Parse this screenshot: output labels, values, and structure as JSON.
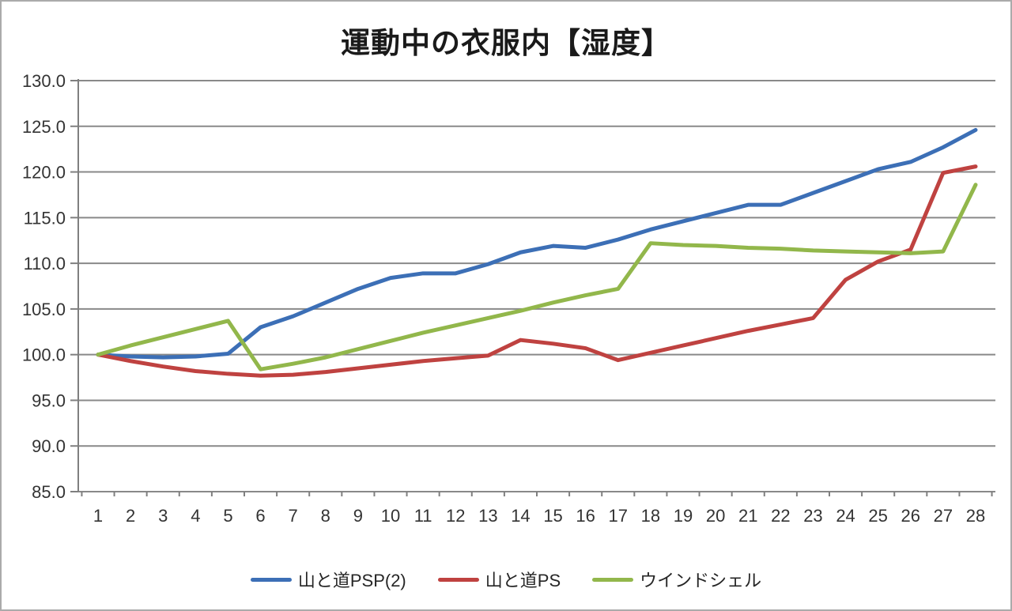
{
  "title": "運動中の衣服内【湿度】",
  "chart_data": {
    "type": "line",
    "x": [
      1,
      2,
      3,
      4,
      5,
      6,
      7,
      8,
      9,
      10,
      11,
      12,
      13,
      14,
      15,
      16,
      17,
      18,
      19,
      20,
      21,
      22,
      23,
      24,
      25,
      26,
      27,
      28
    ],
    "xticks": [
      "1",
      "2",
      "3",
      "4",
      "5",
      "6",
      "7",
      "8",
      "9",
      "10",
      "11",
      "12",
      "13",
      "14",
      "15",
      "16",
      "17",
      "18",
      "19",
      "20",
      "21",
      "22",
      "23",
      "24",
      "25",
      "26",
      "27",
      "28"
    ],
    "yticks": [
      "85.0",
      "90.0",
      "95.0",
      "100.0",
      "105.0",
      "110.0",
      "115.0",
      "120.0",
      "125.0",
      "130.0"
    ],
    "ylim": [
      85,
      130
    ],
    "ytick_step": 5,
    "grid": true,
    "legend_position": "bottom",
    "axis_color": "#7f7f7f",
    "grid_color": "#898989",
    "tick_label_color": "#333333",
    "series": [
      {
        "name": "山と道PSP(2)",
        "color": "#3c6fb6",
        "values": [
          100.0,
          99.8,
          99.7,
          99.8,
          100.1,
          103.0,
          104.2,
          105.7,
          107.2,
          108.4,
          108.9,
          108.9,
          109.9,
          111.2,
          111.9,
          111.7,
          112.6,
          113.7,
          114.6,
          115.5,
          116.4,
          116.4,
          117.7,
          119.0,
          120.3,
          121.1,
          122.7,
          124.6
        ]
      },
      {
        "name": "山と道PS",
        "color": "#bf4240",
        "values": [
          100.0,
          99.3,
          98.7,
          98.2,
          97.9,
          97.7,
          97.8,
          98.1,
          98.5,
          98.9,
          99.3,
          99.6,
          99.9,
          101.6,
          101.2,
          100.7,
          99.4,
          100.2,
          101.0,
          101.8,
          102.6,
          103.3,
          104.0,
          108.2,
          110.2,
          111.5,
          119.9,
          120.6
        ]
      },
      {
        "name": "ウインドシェル",
        "color": "#92b74b",
        "values": [
          100.0,
          101.0,
          101.9,
          102.8,
          103.7,
          98.4,
          99.0,
          99.7,
          100.6,
          101.5,
          102.4,
          103.2,
          104.0,
          104.8,
          105.7,
          106.5,
          107.2,
          112.2,
          112.0,
          111.9,
          111.7,
          111.6,
          111.4,
          111.3,
          111.2,
          111.1,
          111.3,
          118.6
        ]
      }
    ]
  }
}
